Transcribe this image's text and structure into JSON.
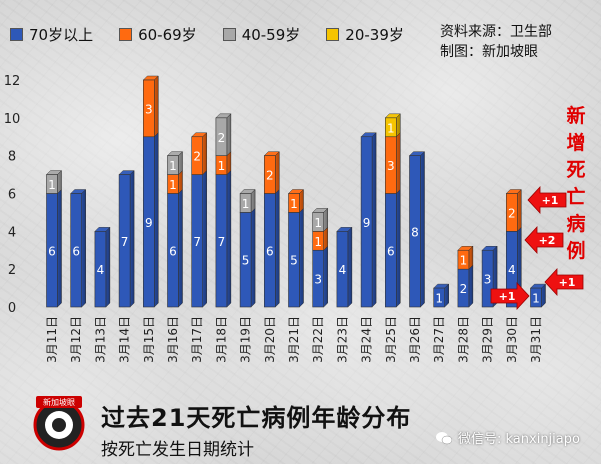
{
  "chart_data": {
    "type": "bar",
    "stacked": true,
    "categories": [
      "3月11日",
      "3月12日",
      "3月13日",
      "3月14日",
      "3月15日",
      "3月16日",
      "3月17日",
      "3月18日",
      "3月19日",
      "3月20日",
      "3月21日",
      "3月22日",
      "3月23日",
      "3月24日",
      "3月25日",
      "3月26日",
      "3月27日",
      "3月28日",
      "3月29日",
      "3月30日",
      "3月31日"
    ],
    "series": [
      {
        "name": "70岁以上",
        "color": "#2e58b8",
        "values": [
          6,
          6,
          4,
          7,
          9,
          6,
          7,
          7,
          5,
          6,
          5,
          3,
          4,
          9,
          6,
          8,
          1,
          2,
          3,
          4,
          1
        ]
      },
      {
        "name": "60-69岁",
        "color": "#ff6a10",
        "values": [
          0,
          0,
          0,
          0,
          3,
          1,
          2,
          1,
          0,
          2,
          1,
          1,
          0,
          0,
          3,
          0,
          0,
          1,
          0,
          2,
          0
        ]
      },
      {
        "name": "40-59岁",
        "color": "#a8a8a8",
        "values": [
          1,
          0,
          0,
          0,
          0,
          1,
          0,
          2,
          1,
          0,
          0,
          1,
          0,
          0,
          0,
          0,
          0,
          0,
          0,
          0,
          0
        ]
      },
      {
        "name": "20-39岁",
        "color": "#f5c400",
        "values": [
          0,
          0,
          0,
          0,
          0,
          0,
          0,
          0,
          0,
          0,
          0,
          0,
          0,
          0,
          1,
          0,
          0,
          0,
          0,
          0,
          0
        ]
      }
    ],
    "ylim": [
      0,
      12
    ],
    "yticks": [
      0,
      2,
      4,
      6,
      8,
      10,
      12
    ],
    "grid": false,
    "legend_position": "top",
    "annotations": [
      "+1",
      "+1",
      "+2",
      "+1"
    ]
  },
  "source": {
    "line1": "资料来源：卫生部",
    "line2": "制图：新加坡眼"
  },
  "side_note": [
    "新",
    "增",
    "死",
    "亡",
    "病",
    "例"
  ],
  "caption": {
    "title": "过去21天死亡病例年龄分布",
    "subtitle": "按死亡发生日期统计"
  },
  "logo_text": "新加坡眼",
  "wechat": {
    "text": "微信号: kanxinjiapo",
    "icon": "wechat-icon"
  },
  "colors": {
    "accent_red": "#e00000",
    "arrow_red": "#ee1111"
  }
}
